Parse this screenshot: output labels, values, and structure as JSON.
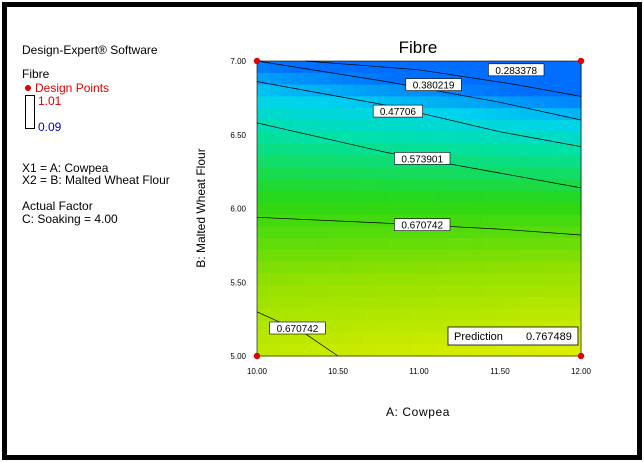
{
  "software": "Design-Expert® Software",
  "response": {
    "name": "Fibre",
    "design_points_label": "Design Points",
    "high": "1.01",
    "low": "0.09"
  },
  "factors": {
    "x1": "X1 = A: Cowpea",
    "x2": "X2 = B: Malted Wheat Flour",
    "actual_factor_title": "Actual Factor",
    "actual_factor_value": "C: Soaking = 4.00"
  },
  "prediction": {
    "label": "Prediction",
    "value": "0.767489"
  },
  "colors": {
    "design_point": "#e00000",
    "high": "#e00000",
    "low": "#0000c8"
  },
  "chart_data": {
    "type": "contour",
    "title": "Fibre",
    "xlabel": "A: Cowpea",
    "ylabel": "B: Malted Wheat Flour",
    "xlim": [
      10.0,
      12.0
    ],
    "ylim": [
      5.0,
      7.0
    ],
    "x_ticks": [
      "10.00",
      "10.50",
      "11.00",
      "11.50",
      "12.00"
    ],
    "y_ticks": [
      "5.00",
      "5.50",
      "6.00",
      "6.50",
      "7.00"
    ],
    "contours": [
      {
        "label": "0.283378",
        "points": [
          [
            10.3,
            7.0
          ],
          [
            11.0,
            6.94
          ],
          [
            11.6,
            6.84
          ],
          [
            12.0,
            6.76
          ]
        ],
        "label_at": [
          11.6,
          6.94
        ]
      },
      {
        "label": "0.380219",
        "points": [
          [
            10.0,
            7.0
          ],
          [
            10.8,
            6.86
          ],
          [
            11.5,
            6.72
          ],
          [
            12.0,
            6.6
          ]
        ],
        "label_at": [
          11.09,
          6.84
        ]
      },
      {
        "label": "0.47706",
        "points": [
          [
            10.0,
            6.86
          ],
          [
            10.8,
            6.7
          ],
          [
            11.5,
            6.52
          ],
          [
            12.0,
            6.42
          ]
        ],
        "label_at": [
          10.87,
          6.66
        ]
      },
      {
        "label": "0.573901",
        "points": [
          [
            10.0,
            6.58
          ],
          [
            10.8,
            6.38
          ],
          [
            11.5,
            6.24
          ],
          [
            12.0,
            6.14
          ]
        ],
        "label_at": [
          11.02,
          6.34
        ]
      },
      {
        "label": "0.670742",
        "points": [
          [
            10.0,
            5.94
          ],
          [
            10.8,
            5.9
          ],
          [
            11.5,
            5.86
          ],
          [
            12.0,
            5.82
          ]
        ],
        "label_at": [
          11.02,
          5.89
        ]
      },
      {
        "label": "0.670742",
        "points": [
          [
            10.0,
            5.3
          ],
          [
            10.3,
            5.15
          ],
          [
            10.5,
            5.0
          ]
        ],
        "label_at": [
          10.25,
          5.19
        ]
      }
    ],
    "design_points": [
      [
        10.0,
        7.0
      ],
      [
        12.0,
        7.0
      ],
      [
        10.0,
        5.0
      ],
      [
        12.0,
        5.0
      ]
    ],
    "prediction_point": [
      12.0,
      5.0
    ],
    "prediction_value": 0.767489
  }
}
